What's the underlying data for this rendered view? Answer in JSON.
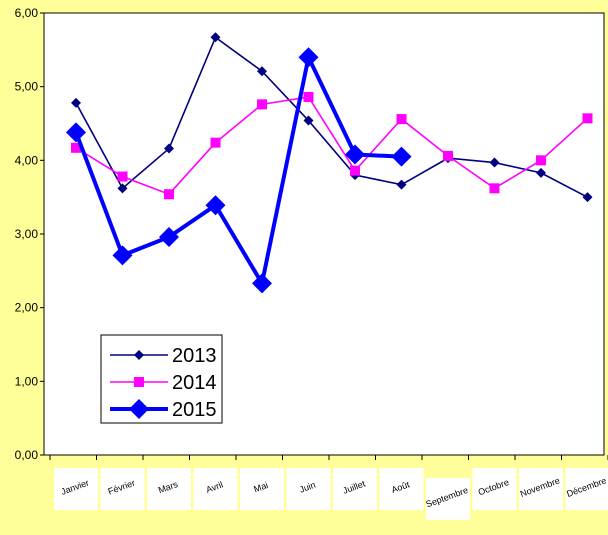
{
  "chart_data": {
    "type": "line",
    "title": "",
    "xlabel": "",
    "ylabel": "",
    "ylim": [
      0,
      6
    ],
    "yticks": [
      "0,00",
      "1,00",
      "2,00",
      "3,00",
      "4,00",
      "5,00",
      "6,00"
    ],
    "categories": [
      "Janvier",
      "Février",
      "Mars",
      "Avril",
      "Mai",
      "Juin",
      "Juillet",
      "Août",
      "Septembre",
      "Octobre",
      "Novembre",
      "Décembre"
    ],
    "grid": false,
    "legend_position": "bottom-left",
    "series": [
      {
        "name": "2013",
        "color": "#000080",
        "marker": "diamond",
        "values": [
          4.78,
          3.62,
          4.16,
          5.67,
          5.21,
          4.54,
          3.8,
          3.67,
          4.03,
          3.97,
          3.83,
          3.5
        ]
      },
      {
        "name": "2014",
        "color": "#FF00FF",
        "marker": "square",
        "values": [
          4.17,
          3.78,
          3.54,
          4.24,
          4.76,
          4.86,
          3.86,
          4.56,
          4.06,
          3.62,
          4.0,
          4.57
        ]
      },
      {
        "name": "2015",
        "color": "#0000FF",
        "marker": "diamond-large",
        "values": [
          4.38,
          2.71,
          2.96,
          3.39,
          2.33,
          5.4,
          4.08,
          4.05,
          null,
          null,
          null,
          null
        ]
      }
    ]
  }
}
